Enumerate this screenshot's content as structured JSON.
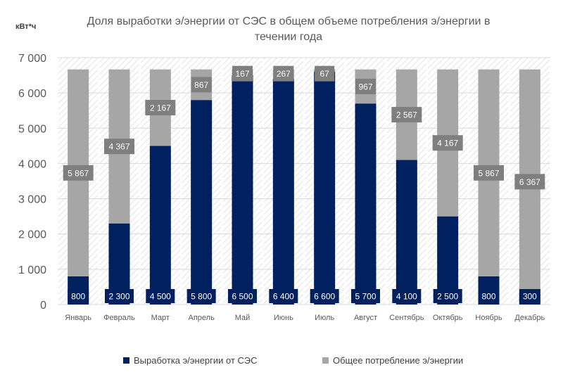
{
  "chart_data": {
    "type": "bar",
    "stacked": true,
    "title": "Доля выработки э/энергии от СЭС в общем объеме потребления э/энергии в течении года",
    "unit_label": "кВт*ч",
    "categories": [
      "Январь",
      "Февраль",
      "Март",
      "Апрель",
      "Май",
      "Июнь",
      "Июль",
      "Август",
      "Сентябрь",
      "Октябрь",
      "Ноябрь",
      "Декабрь"
    ],
    "series": [
      {
        "name": "Выработка э/энергии от СЭС",
        "values": [
          800,
          2300,
          4500,
          5800,
          6500,
          6400,
          6600,
          5700,
          4100,
          2500,
          800,
          300
        ],
        "color": "#002060",
        "labels": [
          "800",
          "2 300",
          "4 500",
          "5 800",
          "6 500",
          "6 400",
          "6 600",
          "5 700",
          "4 100",
          "2 500",
          "800",
          "300"
        ]
      },
      {
        "name": "Общее потребление э/энергии",
        "values": [
          5867,
          4367,
          2167,
          867,
          167,
          267,
          67,
          967,
          2567,
          4167,
          5867,
          6367
        ],
        "color": "#A6A6A6",
        "labels": [
          "5 867",
          "4 367",
          "2 167",
          "867",
          "167",
          "267",
          "67",
          "967",
          "2 567",
          "4 167",
          "5 867",
          "6 367"
        ]
      }
    ],
    "ylim": [
      0,
      7000
    ],
    "yticks": [
      0,
      1000,
      2000,
      3000,
      4000,
      5000,
      6000,
      7000
    ],
    "ytick_labels": [
      "0",
      "1 000",
      "2 000",
      "3 000",
      "4 000",
      "5 000",
      "6 000",
      "7 000"
    ],
    "grid": true,
    "legend_position": "bottom"
  }
}
